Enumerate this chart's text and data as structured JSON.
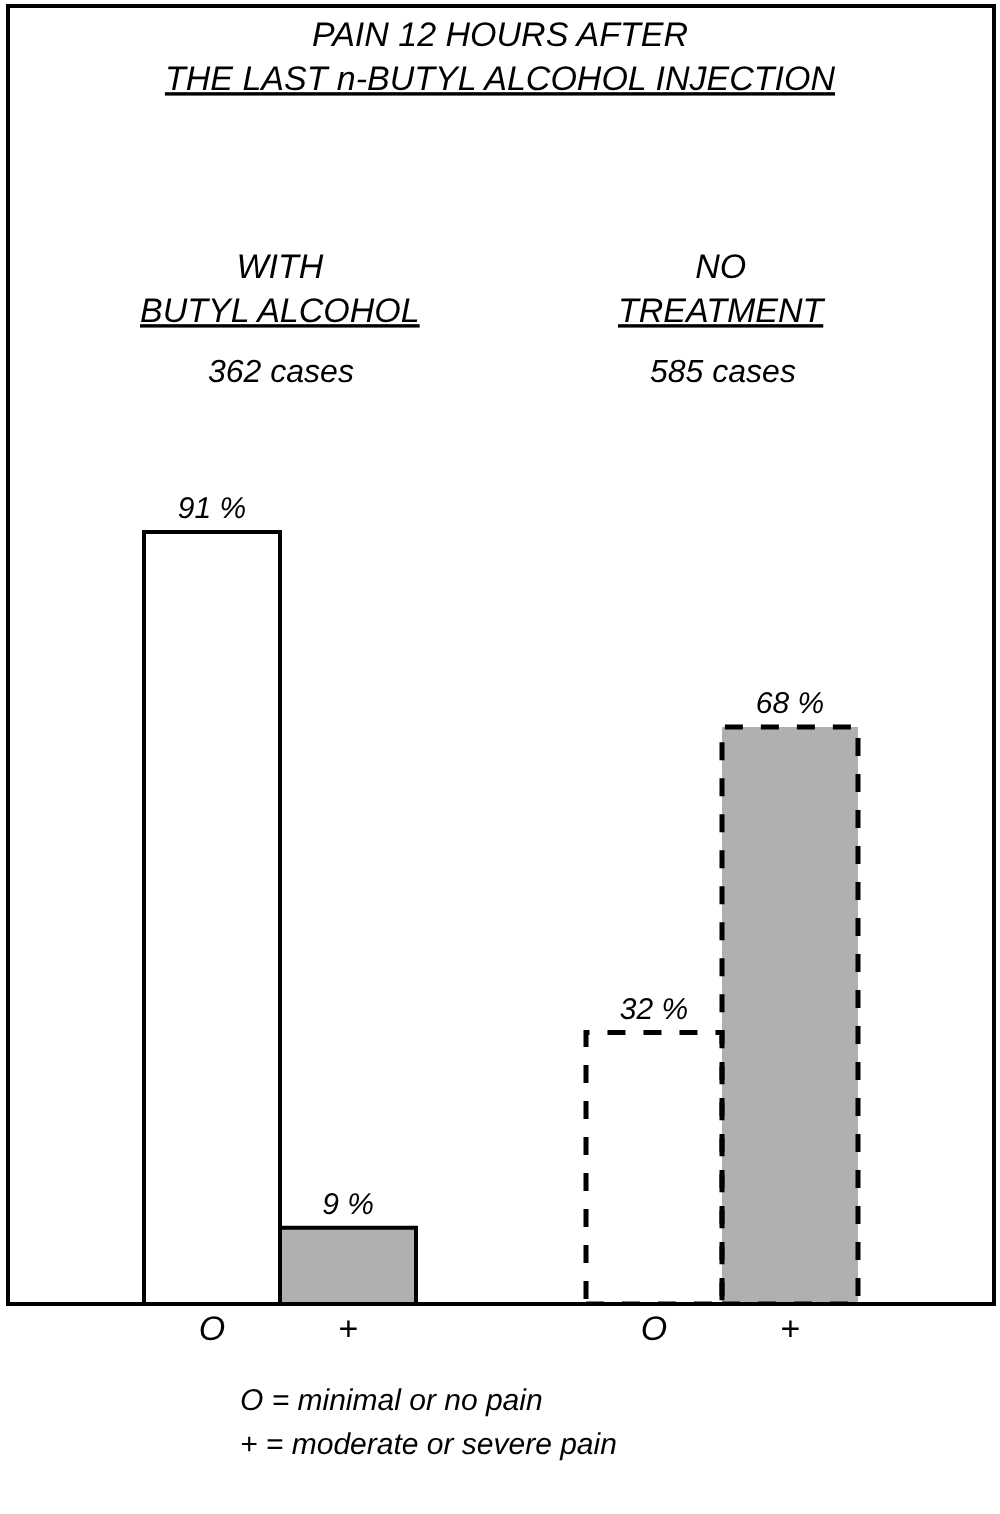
{
  "chart_data": {
    "type": "bar",
    "title": "PAIN 12 HOURS AFTER\nTHE LAST n-BUTYL ALCOHOL INJECTION",
    "categories": [
      "O",
      "+",
      "O",
      "+"
    ],
    "series": [
      {
        "values": [
          91,
          9,
          null,
          null
        ],
        "colors": [
          "#ffffff",
          "#b0b0b0",
          null,
          null
        ],
        "value_labels": [
          "91 %",
          "9 %",
          null,
          null
        ],
        "line_style": "solid"
      },
      {
        "values": [
          null,
          null,
          32,
          68
        ],
        "colors": [
          null,
          null,
          "#ffffff",
          "#b0b0b0"
        ],
        "value_labels": [
          null,
          null,
          "32 %",
          "68 %"
        ],
        "line_style": "dashed"
      }
    ],
    "annotations": [
      "WITH\nBUTYL ALCOHOL",
      "362 cases",
      "NO\nTREATMENT",
      "585 cases",
      "O = minimal or no pain",
      "+ = moderate or severe pain"
    ],
    "tick_labels": "x"
  }
}
